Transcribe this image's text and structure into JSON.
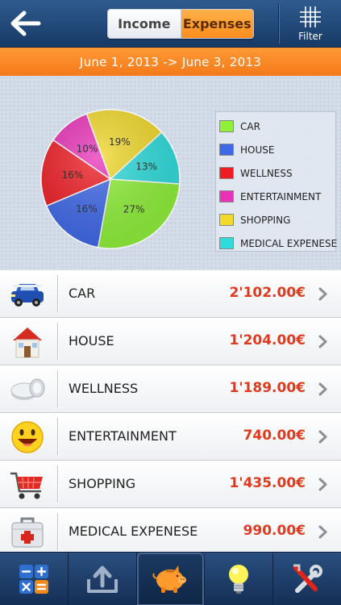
{
  "header": {
    "segments": [
      {
        "label": "Income",
        "selected": false
      },
      {
        "label": "Expenses",
        "selected": true
      }
    ],
    "filter_label": "Filter"
  },
  "date_range": "June 1, 2013 -> June 3, 2013",
  "chart_data": {
    "type": "pie",
    "slices": [
      {
        "label": "CAR",
        "percent": 27,
        "percent_label": "27%",
        "color": "#8ff03a"
      },
      {
        "label": "HOUSE",
        "percent": 16,
        "percent_label": "16%",
        "color": "#3f68e8"
      },
      {
        "label": "WELLNESS",
        "percent": 16,
        "percent_label": "16%",
        "color": "#ee1c24"
      },
      {
        "label": "ENTERTAINMENT",
        "percent": 10,
        "percent_label": "10%",
        "color": "#e832b8"
      },
      {
        "label": "SHOPPING",
        "percent": 19,
        "percent_label": "19%",
        "color": "#f1d92c"
      },
      {
        "label": "MEDICAL EXPENESE",
        "percent": 13,
        "percent_label": "13%",
        "color": "#2fdcdc"
      }
    ],
    "legend_position": "right"
  },
  "legend": [
    {
      "label": "CAR",
      "color": "#8ff03a"
    },
    {
      "label": "HOUSE",
      "color": "#3f68e8"
    },
    {
      "label": "WELLNESS",
      "color": "#ee1c24"
    },
    {
      "label": "ENTERTAINMENT",
      "color": "#e832b8"
    },
    {
      "label": "SHOPPING",
      "color": "#f1d92c"
    },
    {
      "label": "MEDICAL EXPENESE",
      "color": "#2fdcdc"
    }
  ],
  "categories": [
    {
      "label": "CAR",
      "amount": "2'102.00€",
      "icon": "car-icon"
    },
    {
      "label": "HOUSE",
      "amount": "1'204.00€",
      "icon": "house-icon"
    },
    {
      "label": "WELLNESS",
      "amount": "1'189.00€",
      "icon": "wellness-icon"
    },
    {
      "label": "ENTERTAINMENT",
      "amount": "740.00€",
      "icon": "smiley-icon"
    },
    {
      "label": "SHOPPING",
      "amount": "1'435.00€",
      "icon": "shopping-cart-icon"
    },
    {
      "label": "MEDICAL EXPENESE",
      "amount": "990.00€",
      "icon": "medical-kit-icon"
    }
  ],
  "tabs": [
    {
      "icon": "calculator-icon",
      "active": false
    },
    {
      "icon": "export-icon",
      "active": false
    },
    {
      "icon": "piggy-bank-icon",
      "active": true
    },
    {
      "icon": "lightbulb-icon",
      "active": false
    },
    {
      "icon": "tools-icon",
      "active": false
    }
  ],
  "colors": {
    "header": "#1f4676",
    "accent_orange": "#f7841f",
    "amount_red": "#e03a1e"
  }
}
